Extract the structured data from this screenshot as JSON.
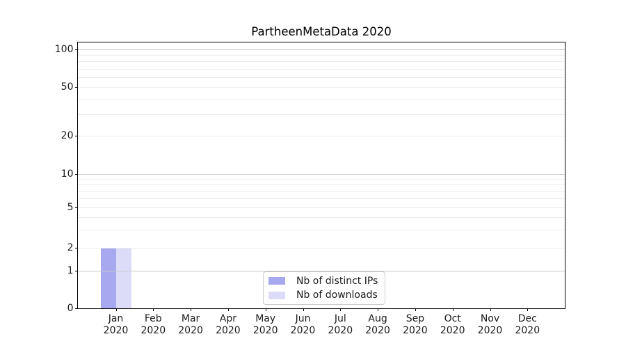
{
  "title": "PartheenMetaData 2020",
  "chart_data": {
    "type": "bar",
    "title": "PartheenMetaData 2020",
    "xlabel": "",
    "ylabel": "",
    "categories": [
      "Jan 2020",
      "Feb 2020",
      "Mar 2020",
      "Apr 2020",
      "May 2020",
      "Jun 2020",
      "Jul 2020",
      "Aug 2020",
      "Sep 2020",
      "Oct 2020",
      "Nov 2020",
      "Dec 2020"
    ],
    "x_tick_months": [
      "Jan",
      "Feb",
      "Mar",
      "Apr",
      "May",
      "Jun",
      "Jul",
      "Aug",
      "Sep",
      "Oct",
      "Nov",
      "Dec"
    ],
    "x_tick_year": "2020",
    "series": [
      {
        "name": "Nb of distinct IPs",
        "color": "#a8a8f0",
        "values": [
          2,
          0,
          0,
          0,
          0,
          0,
          0,
          0,
          0,
          0,
          0,
          0
        ]
      },
      {
        "name": "Nb of downloads",
        "color": "#dcdcf8",
        "values": [
          2,
          0,
          0,
          0,
          0,
          0,
          0,
          0,
          0,
          0,
          0,
          0
        ]
      }
    ],
    "yscale": "symlog",
    "ylim": [
      0,
      114
    ],
    "y_tick_labels": [
      "0",
      "1",
      "2",
      "5",
      "10",
      "20",
      "50",
      "100"
    ],
    "y_labeled_ticks": [
      0,
      1,
      2,
      5,
      10,
      20,
      50,
      100
    ],
    "y_decade_majors": [
      1,
      10,
      100
    ],
    "y_minor_gridlines": [
      2,
      3,
      4,
      5,
      6,
      7,
      8,
      9,
      20,
      30,
      40,
      50,
      60,
      70,
      80,
      90
    ],
    "grid": "horizontal",
    "legend_position": "lower center"
  },
  "colors": {
    "background": "#ffffff",
    "spine": "#000000",
    "text": "#1a1a1a",
    "grid_major": "#c8c8c8",
    "grid_minor": "#ececec",
    "legend_border": "#cccccc",
    "bar_distinct_ips": "#a8a8f0",
    "bar_downloads": "#dcdcf8"
  }
}
